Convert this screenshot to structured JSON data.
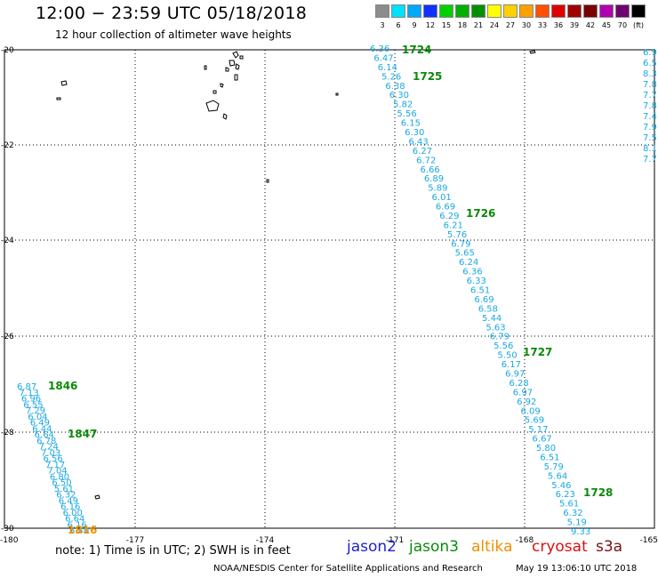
{
  "title": "12:00 − 23:59 UTC 05/18/2018",
  "subtitle": "12 hour collection of altimeter wave heights",
  "note": "note:  1) Time is in UTC;  2) SWH is in feet",
  "satellites": [
    {
      "name": "jason2",
      "color": "#1f1fd0"
    },
    {
      "name": "jason3",
      "color": "#0a8a0a"
    },
    {
      "name": "altika",
      "color": "#f09000"
    },
    {
      "name": "cryosat",
      "color": "#d81010"
    },
    {
      "name": "s3a",
      "color": "#7a1010"
    }
  ],
  "footer_left": "NOAA/NESDIS Center for Satellite Applications and Research",
  "footer_right": "May 19 13:06:10 UTC 2018",
  "legend": {
    "labels": [
      "3",
      "6",
      "9",
      "12",
      "15",
      "18",
      "21",
      "24",
      "27",
      "30",
      "33",
      "36",
      "39",
      "42",
      "45",
      "70",
      "(ft)"
    ],
    "colors": [
      "#8c8c8c",
      "#00e0ff",
      "#00a8ff",
      "#1030ff",
      "#00d000",
      "#00b000",
      "#009000",
      "#ffff00",
      "#ffd000",
      "#ffa000",
      "#ff5000",
      "#e00000",
      "#a00000",
      "#7a0000",
      "#b000b0",
      "#700070",
      "#000000"
    ]
  },
  "axes": {
    "lon_labels": [
      "-180",
      "-177",
      "-174",
      "-171",
      "-168",
      "-165"
    ],
    "lat_labels": [
      "-20",
      "-22",
      "-24",
      "-26",
      "-28",
      "-30"
    ]
  },
  "track_labels": [
    {
      "text": "1724",
      "color": "#0a8a0a"
    },
    {
      "text": "1725",
      "color": "#0a8a0a"
    },
    {
      "text": "1726",
      "color": "#0a8a0a"
    },
    {
      "text": "1727",
      "color": "#0a8a0a"
    },
    {
      "text": "1728",
      "color": "#0a8a0a"
    },
    {
      "text": "1846",
      "color": "#0a8a0a"
    },
    {
      "text": "1847",
      "color": "#0a8a0a"
    },
    {
      "text": "1816",
      "color": "#f09000"
    }
  ],
  "main_track_values": [
    "6.36",
    "6.47",
    "6.14",
    "5.26",
    "6.38",
    "6.30",
    "5.82",
    "5.56",
    "6.15",
    "6.30",
    "6.43",
    "6.27",
    "6.72",
    "6.66",
    "6.89",
    "5.89",
    "6.01",
    "6.69",
    "6.29",
    "6.21",
    "5.76",
    "6.79",
    "5.65",
    "6.24",
    "6.36",
    "6.33",
    "6.51",
    "6.69",
    "6.58",
    "5.44",
    "5.63",
    "6.79",
    "5.56",
    "5.50",
    "6.17",
    "6.97",
    "6.28",
    "6.97",
    "6.92",
    "6.09",
    "5.69",
    "5.17",
    "6.67",
    "5.80",
    "6.51",
    "5.79",
    "5.64",
    "5.46",
    "6.23",
    "5.61",
    "6.32",
    "5.19",
    "9.33"
  ],
  "left_track_values": [
    "6.87",
    "7.13",
    "6.96",
    "6.55",
    "7.29",
    "6.04",
    "6.49",
    "6.44",
    "6.64",
    "6.78",
    "7.24",
    "7.03",
    "6.56",
    "7.17",
    "7.04",
    "6.80",
    "6.50",
    "5.61",
    "6.32",
    "6.49",
    "6.16",
    "6.00",
    "6.64",
    "6.16",
    "6.40"
  ],
  "right_edge_values": [
    "6.9",
    "6.5",
    "8.3",
    "7.8",
    "7.7",
    "7.8",
    "7.4",
    "7.9",
    "7.5",
    "8.1",
    "7.7"
  ]
}
